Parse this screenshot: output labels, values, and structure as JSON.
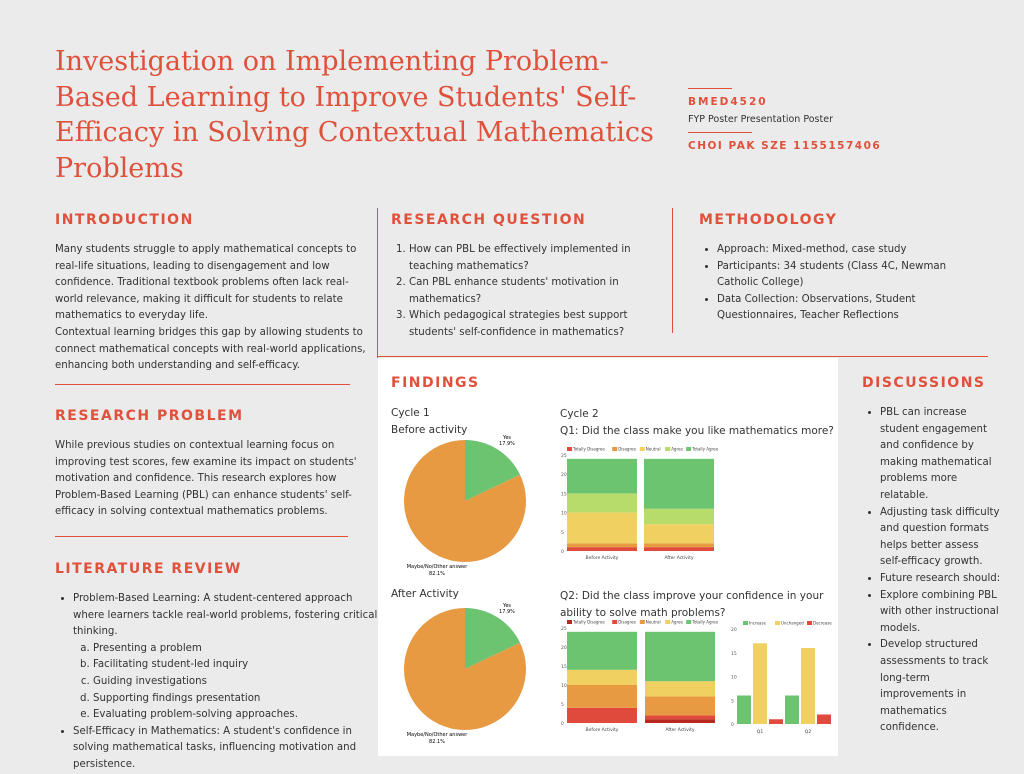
{
  "title": "Investigation on Implementing Problem-Based Learning to Improve Students' Self-Efficacy in Solving Contextual Mathematics Problems",
  "course_code": "BMED4520",
  "subtitle": "FYP Poster Presentation Poster",
  "author": "CHOI PAK SZE 1155157406",
  "accent": "#e0513c",
  "introduction": {
    "heading": "INTRODUCTION",
    "paragraphs": [
      "Many students struggle to apply mathematical concepts to real-life situations, leading to disengagement and low confidence. Traditional textbook problems often lack real-world relevance, making it difficult for students to relate mathematics to everyday life.",
      "Contextual learning bridges this gap by allowing students to connect mathematical concepts with real-world applications, enhancing both understanding and self-efficacy."
    ]
  },
  "research_problem": {
    "heading": "RESEARCH PROBLEM",
    "text": "While previous studies on contextual learning focus on improving test scores, few examine its impact on students' motivation and confidence. This research explores how Problem-Based Learning (PBL) can enhance students' self-efficacy in solving contextual mathematics problems."
  },
  "literature_review": {
    "heading": "LITERATURE REVIEW",
    "item1": "Problem-Based Learning: A student-centered approach where learners tackle real-world problems, fostering critical thinking.",
    "sub": [
      "Presenting a problem",
      "Facilitating student-led inquiry",
      "Guiding investigations",
      "Supporting findings presentation",
      "Evaluating problem-solving approaches."
    ],
    "item2": "Self-Efficacy in Mathematics: A student's confidence in solving mathematical tasks, influencing motivation and persistence."
  },
  "research_question": {
    "heading": "RESEARCH QUESTION",
    "items": [
      "How can PBL be effectively implemented in teaching mathematics?",
      "Can PBL enhance students' motivation in mathematics?",
      "Which pedagogical strategies best support students' self-confidence in mathematics?"
    ]
  },
  "methodology": {
    "heading": "METHODOLOGY",
    "items": [
      "Approach: Mixed-method, case study",
      "Participants: 34 students (Class 4C, Newman Catholic College)",
      "Data Collection: Observations, Student Questionnaires, Teacher Reflections"
    ]
  },
  "findings": {
    "heading": "FINDINGS",
    "cycle1": "Cycle 1",
    "before": "Before activity",
    "after": "After Activity",
    "cycle2": "Cycle 2",
    "q1": "Q1: Did the class make you like mathematics more?",
    "q2": "Q2: Did the class improve your confidence in your ability to solve math problems?"
  },
  "discussions": {
    "heading": "DISCUSSIONS",
    "items": [
      "PBL can increase student engagement and confidence by making mathematical problems more relatable.",
      "Adjusting task difficulty and question formats helps better assess self-efficacy growth.",
      "Future research should:",
      "Explore combining PBL with other instructional models.",
      "Develop structured assessments to track long-term improvements in mathematics confidence."
    ]
  },
  "chart_data": [
    {
      "type": "pie",
      "title": "Before activity",
      "labels": [
        "Yes",
        "Maybe/No/Other answer"
      ],
      "values": [
        17.9,
        82.1
      ],
      "value_labels": [
        "17.9%",
        "82.1%"
      ],
      "colors": [
        "#6cc471",
        "#e89a42"
      ]
    },
    {
      "type": "pie",
      "title": "After Activity",
      "labels": [
        "Yes",
        "Maybe/No/Other answer"
      ],
      "values": [
        17.9,
        82.1
      ],
      "value_labels": [
        "17.9%",
        "82.1%"
      ],
      "colors": [
        "#6cc471",
        "#e89a42"
      ]
    },
    {
      "type": "bar",
      "stacked": true,
      "title": "Q1: Did the class make you like mathematics more?",
      "categories": [
        "Before Activity",
        "After Activity"
      ],
      "ylim": [
        0,
        25
      ],
      "yticks": [
        0,
        5,
        10,
        15,
        20,
        25
      ],
      "legend": "top",
      "series": [
        {
          "name": "Totally Disagree",
          "color": "#e04a3c",
          "values": [
            1,
            1
          ]
        },
        {
          "name": "Disagree",
          "color": "#e89a42",
          "values": [
            1,
            1
          ]
        },
        {
          "name": "Neutral",
          "color": "#f0d060",
          "values": [
            8,
            5
          ]
        },
        {
          "name": "Agree",
          "color": "#b8dc6c",
          "values": [
            5,
            4
          ]
        },
        {
          "name": "Totally Agree",
          "color": "#6cc471",
          "values": [
            9,
            13
          ]
        }
      ]
    },
    {
      "type": "bar",
      "stacked": true,
      "title": "Q2: Did the class improve your confidence in your ability to solve math problems?",
      "categories": [
        "Before Activity",
        "After Activity"
      ],
      "ylim": [
        0,
        25
      ],
      "yticks": [
        0,
        5,
        10,
        15,
        20,
        25
      ],
      "legend": "top",
      "series": [
        {
          "name": "Totally Disagree",
          "color": "#b8281e",
          "values": [
            0,
            1
          ]
        },
        {
          "name": "Disagree",
          "color": "#e04a3c",
          "values": [
            4,
            1
          ]
        },
        {
          "name": "Neutral",
          "color": "#e89a42",
          "values": [
            6,
            5
          ]
        },
        {
          "name": "Agree",
          "color": "#f0d060",
          "values": [
            4,
            4
          ]
        },
        {
          "name": "Totally Agree",
          "color": "#6cc471",
          "values": [
            10,
            13
          ]
        }
      ]
    },
    {
      "type": "bar",
      "stacked": false,
      "categories": [
        "Q1",
        "Q2"
      ],
      "ylim": [
        0,
        20
      ],
      "yticks": [
        0,
        5,
        10,
        15,
        20
      ],
      "legend": "top",
      "series": [
        {
          "name": "Increase",
          "color": "#6cc471",
          "values": [
            6,
            6
          ]
        },
        {
          "name": "Unchanged",
          "color": "#f0d060",
          "values": [
            17,
            16
          ]
        },
        {
          "name": "Decrease",
          "color": "#e04a3c",
          "values": [
            1,
            2
          ]
        }
      ]
    }
  ]
}
